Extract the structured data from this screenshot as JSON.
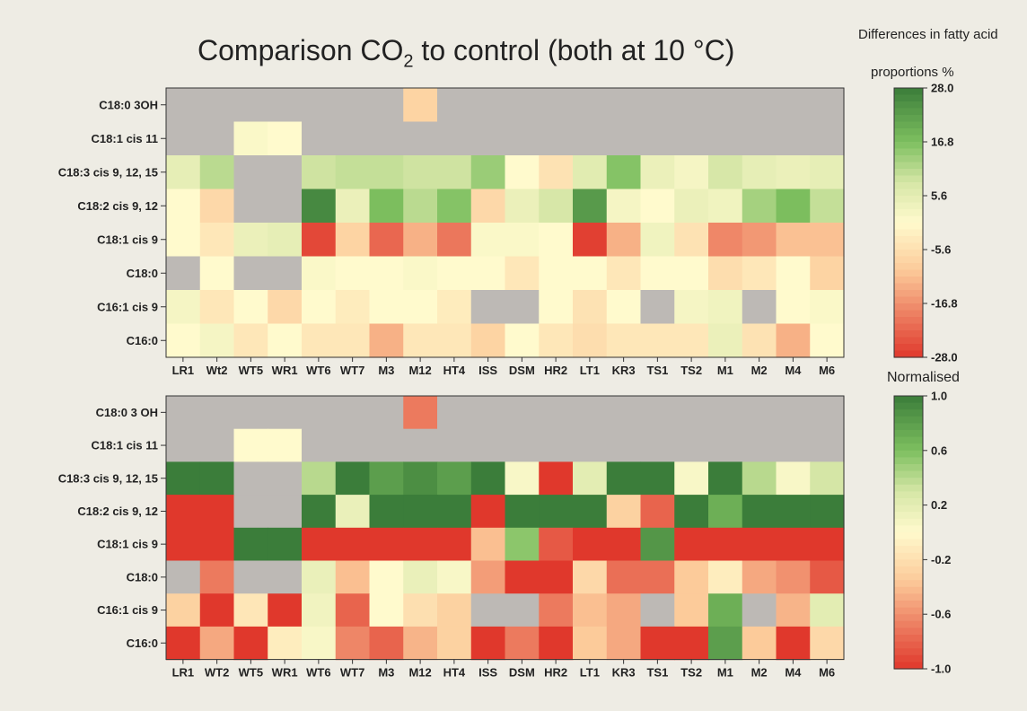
{
  "title": {
    "pre": "Comparison CO",
    "sub": "2",
    "post": " to control (both at 10 °C)"
  },
  "colorbar1": {
    "title_line1": "Differences in fatty acid",
    "title_line2": "proportions %",
    "ticks": [
      "28.0",
      "16.8",
      "5.6",
      "-5.6",
      "-16.8",
      "-28.0"
    ],
    "tick_values": [
      28.0,
      16.8,
      5.6,
      -5.6,
      -16.8,
      -28.0
    ],
    "range": [
      -28.0,
      28.0
    ]
  },
  "colorbar2": {
    "title": "Normalised",
    "ticks": [
      "1.0",
      "0.6",
      "0.2",
      "-0.2",
      "-0.6",
      "-1.0"
    ],
    "tick_values": [
      1.0,
      0.6,
      0.2,
      -0.2,
      -0.6,
      -1.0
    ],
    "range": [
      -1.0,
      1.0
    ]
  },
  "colors": {
    "positive": "#3b7d3a",
    "negative": "#e0382c",
    "neutral": "#fffacd",
    "missing": "#bdb9b5",
    "background": "#eeece4"
  },
  "chart_data": [
    {
      "type": "heatmap",
      "rows": [
        "C18:0 3OH",
        "C18:1 cis 11",
        "C18:3 cis 9, 12, 15",
        "C18:2 cis 9, 12",
        "C18:1 cis 9",
        "C18:0",
        "C16:1 cis 9",
        "C16:0"
      ],
      "columns": [
        "LR1",
        "Wt2",
        "WT5",
        "WR1",
        "WT6",
        "WT7",
        "M3",
        "M12",
        "HT4",
        "ISS",
        "DSM",
        "HR2",
        "LT1",
        "KR3",
        "TS1",
        "TS2",
        "M1",
        "M2",
        "M4",
        "M6"
      ],
      "values": [
        [
          null,
          null,
          null,
          null,
          null,
          null,
          null,
          -8,
          null,
          null,
          null,
          null,
          null,
          null,
          null,
          null,
          null,
          null,
          null,
          null
        ],
        [
          null,
          null,
          1,
          0,
          null,
          null,
          null,
          null,
          null,
          null,
          null,
          null,
          null,
          null,
          null,
          null,
          null,
          null,
          null,
          null
        ],
        [
          5,
          11,
          null,
          null,
          9,
          10,
          10,
          9,
          9,
          14,
          0,
          -5,
          6,
          16,
          4,
          2,
          8,
          5,
          4,
          5
        ],
        [
          0,
          -7,
          null,
          null,
          26,
          4,
          17,
          11,
          16,
          -7,
          4,
          8,
          23,
          2,
          0,
          4,
          3,
          13,
          17,
          10
        ],
        [
          0,
          -4,
          4,
          5,
          -26,
          -8,
          -22,
          -13,
          -20,
          1,
          1,
          0,
          -27,
          -13,
          3,
          -5,
          -18,
          -16,
          -11,
          -11
        ],
        [
          null,
          0,
          null,
          null,
          1,
          0,
          0,
          1,
          0,
          0,
          -4,
          0,
          0,
          -4,
          0,
          0,
          -6,
          -4,
          0,
          -8
        ],
        [
          2,
          -4,
          0,
          -7,
          0,
          -3,
          0,
          0,
          -3,
          null,
          null,
          0,
          -5,
          0,
          null,
          2,
          3,
          null,
          0,
          1
        ],
        [
          0,
          2,
          -4,
          0,
          -4,
          -4,
          -13,
          -4,
          -4,
          -8,
          0,
          -4,
          -6,
          -4,
          -4,
          -4,
          4,
          -5,
          -13,
          0
        ]
      ],
      "colorbar_range": [
        -28.0,
        28.0
      ],
      "xlabel": "",
      "ylabel": "",
      "missing_color": "#bdb9b5"
    },
    {
      "type": "heatmap",
      "rows": [
        "C18:0 3 OH",
        "C18:1 cis 11",
        "C18:3 cis 9, 12, 15",
        "C18:2 cis 9, 12",
        "C18:1 cis 9",
        "C18:0",
        "C16:1 cis 9",
        "C16:0"
      ],
      "columns": [
        "LR1",
        "WT2",
        "WT5",
        "WR1",
        "WT6",
        "WT7",
        "M3",
        "M12",
        "HT4",
        "ISS",
        "DSM",
        "HR2",
        "LT1",
        "KR3",
        "TS1",
        "TS2",
        "M1",
        "M2",
        "M4",
        "M6"
      ],
      "values": [
        [
          null,
          null,
          null,
          null,
          null,
          null,
          null,
          -0.7,
          null,
          null,
          null,
          null,
          null,
          null,
          null,
          null,
          null,
          null,
          null,
          null
        ],
        [
          null,
          null,
          0,
          0,
          null,
          null,
          null,
          null,
          null,
          null,
          null,
          null,
          null,
          null,
          null,
          null,
          null,
          null,
          null,
          null
        ],
        [
          1.0,
          1.0,
          null,
          null,
          0.4,
          1.0,
          0.8,
          0.9,
          0.8,
          1.0,
          0.05,
          -1.0,
          0.2,
          1.0,
          1.0,
          0.05,
          1.0,
          0.4,
          0.05,
          0.3
        ],
        [
          -1.0,
          -1.0,
          null,
          null,
          1.0,
          0.15,
          1.0,
          1.0,
          1.0,
          -1.0,
          1.0,
          1.0,
          1.0,
          -0.3,
          -0.8,
          1.0,
          0.7,
          1.0,
          1.0,
          1.0
        ],
        [
          -1.0,
          -1.0,
          1.0,
          1.0,
          -1.0,
          -1.0,
          -1.0,
          -1.0,
          -1.0,
          -0.4,
          0.55,
          -0.85,
          -1.0,
          -1.0,
          0.85,
          -1.0,
          -1.0,
          -1.0,
          -1.0,
          -1.0
        ],
        [
          null,
          -0.7,
          null,
          null,
          0.15,
          -0.4,
          0,
          0.15,
          0.05,
          -0.55,
          -1.0,
          -1.0,
          -0.25,
          -0.75,
          -0.75,
          -0.35,
          -0.1,
          -0.5,
          -0.6,
          -0.85
        ],
        [
          -0.3,
          -1.0,
          -0.15,
          -1.0,
          0.1,
          -0.8,
          0,
          -0.2,
          -0.3,
          null,
          null,
          -0.7,
          -0.4,
          -0.5,
          null,
          -0.35,
          0.7,
          null,
          -0.45,
          0.2
        ],
        [
          -1.0,
          -0.5,
          -1.0,
          -0.1,
          0.05,
          -0.65,
          -0.8,
          -0.45,
          -0.3,
          -1.0,
          -0.7,
          -1.0,
          -0.35,
          -0.5,
          -1.0,
          -1.0,
          0.8,
          -0.35,
          -1.0,
          -0.25
        ]
      ],
      "colorbar_range": [
        -1.0,
        1.0
      ],
      "xlabel": "",
      "ylabel": "",
      "missing_color": "#bdb9b5"
    }
  ]
}
